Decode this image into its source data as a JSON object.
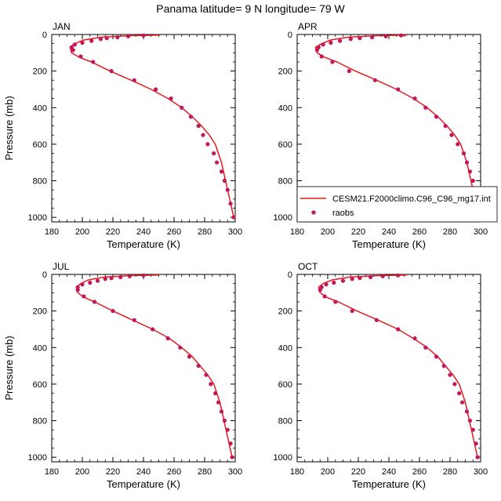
{
  "title": "Panama  latitude= 9 N longitude= 79 W",
  "colors": {
    "model": "#e41a1c",
    "obs": "#c2185b",
    "axis": "#000000"
  },
  "legend": {
    "model_label": "CESM21.F2000climo.C96_C96_mg17.int",
    "obs_label": "raobs"
  },
  "chart_data": [
    {
      "type": "line",
      "title": "JAN",
      "xlabel": "Temperature (K)",
      "ylabel": "Pressure (mb)",
      "xlim": [
        180,
        300
      ],
      "ylim": [
        0,
        1025
      ],
      "y_inverted": true,
      "xticks": [
        180,
        200,
        220,
        240,
        260,
        280,
        300
      ],
      "yticks": [
        0,
        200,
        400,
        600,
        800,
        1000
      ],
      "series": [
        {
          "name": "CESM21.F2000climo.C96_C96_mg17.int",
          "style": "line",
          "x": [
            251,
            230,
            212,
            201,
            195,
            192,
            193,
            198,
            206,
            218,
            232,
            245,
            256,
            265,
            272,
            278,
            283,
            287,
            291,
            295,
            299
          ],
          "y": [
            3,
            7,
            15,
            30,
            50,
            70,
            100,
            125,
            150,
            200,
            250,
            300,
            350,
            400,
            450,
            500,
            550,
            600,
            700,
            850,
            1000
          ]
        },
        {
          "name": "raobs",
          "style": "markers",
          "x": [
            240,
            230,
            223,
            216,
            212,
            206,
            200,
            195,
            193,
            194,
            199,
            207,
            219,
            234,
            248,
            258,
            265,
            271,
            276,
            279,
            282,
            286,
            288,
            291,
            293,
            295,
            297,
            299
          ],
          "y": [
            5,
            10,
            15,
            20,
            25,
            35,
            45,
            55,
            70,
            85,
            120,
            150,
            200,
            250,
            300,
            350,
            400,
            450,
            500,
            550,
            600,
            650,
            700,
            750,
            800,
            850,
            925,
            1000
          ]
        }
      ]
    },
    {
      "type": "line",
      "title": "APR",
      "xlabel": "Temperature (K)",
      "ylabel": "Pressure (mb)",
      "xlim": [
        180,
        300
      ],
      "ylim": [
        0,
        1025
      ],
      "y_inverted": true,
      "xticks": [
        180,
        200,
        220,
        240,
        260,
        280,
        300
      ],
      "yticks": [
        0,
        200,
        400,
        600,
        800,
        1000
      ],
      "series": [
        {
          "name": "CESM21.F2000climo.C96_C96_mg17.int",
          "style": "line",
          "x": [
            252,
            231,
            213,
            202,
            196,
            192,
            193,
            198,
            206,
            218,
            232,
            245,
            256,
            265,
            272,
            278,
            283,
            287,
            291,
            295,
            299
          ],
          "y": [
            3,
            7,
            15,
            30,
            50,
            70,
            100,
            125,
            150,
            200,
            250,
            300,
            350,
            400,
            450,
            500,
            550,
            600,
            700,
            850,
            1000
          ]
        },
        {
          "name": "raobs",
          "style": "markers",
          "x": [
            248,
            238,
            229,
            221,
            215,
            208,
            202,
            197,
            194,
            193,
            196,
            203,
            214,
            231,
            246,
            257,
            264,
            271,
            277,
            281,
            285,
            289,
            291,
            293,
            295,
            297,
            298,
            299
          ],
          "y": [
            5,
            10,
            15,
            20,
            25,
            35,
            45,
            55,
            70,
            85,
            120,
            150,
            200,
            250,
            300,
            350,
            400,
            450,
            500,
            550,
            600,
            650,
            700,
            750,
            800,
            850,
            925,
            1000
          ]
        }
      ]
    },
    {
      "type": "line",
      "title": "JUL",
      "xlabel": "Temperature (K)",
      "ylabel": "Pressure (mb)",
      "xlim": [
        180,
        300
      ],
      "ylim": [
        0,
        1025
      ],
      "y_inverted": true,
      "xticks": [
        180,
        200,
        220,
        240,
        260,
        280,
        300
      ],
      "yticks": [
        0,
        200,
        400,
        600,
        800,
        1000
      ],
      "series": [
        {
          "name": "CESM21.F2000climo.C96_C96_mg17.int",
          "style": "line",
          "x": [
            250,
            230,
            214,
            204,
            199,
            196,
            197,
            201,
            208,
            220,
            233,
            246,
            257,
            265,
            272,
            277,
            282,
            286,
            290,
            294,
            298
          ],
          "y": [
            3,
            7,
            15,
            30,
            50,
            70,
            100,
            125,
            150,
            200,
            250,
            300,
            350,
            400,
            450,
            500,
            550,
            600,
            700,
            850,
            1000
          ]
        },
        {
          "name": "raobs",
          "style": "markers",
          "x": [
            240,
            231,
            225,
            219,
            215,
            210,
            205,
            200,
            197,
            197,
            201,
            208,
            220,
            234,
            246,
            256,
            264,
            270,
            276,
            281,
            284,
            287,
            289,
            291,
            293,
            295,
            297,
            298
          ],
          "y": [
            5,
            10,
            15,
            20,
            25,
            35,
            45,
            55,
            70,
            85,
            120,
            150,
            200,
            250,
            300,
            350,
            400,
            450,
            500,
            550,
            600,
            650,
            700,
            750,
            800,
            850,
            925,
            1000
          ]
        }
      ]
    },
    {
      "type": "line",
      "title": "OCT",
      "xlabel": "Temperature (K)",
      "ylabel": "Pressure (mb)",
      "xlim": [
        180,
        300
      ],
      "ylim": [
        0,
        1025
      ],
      "y_inverted": true,
      "xticks": [
        180,
        200,
        220,
        240,
        260,
        280,
        300
      ],
      "yticks": [
        0,
        200,
        400,
        600,
        800,
        1000
      ],
      "series": [
        {
          "name": "CESM21.F2000climo.C96_C96_mg17.int",
          "style": "line",
          "x": [
            252,
            232,
            214,
            203,
            197,
            194,
            195,
            199,
            207,
            219,
            233,
            246,
            256,
            265,
            272,
            277,
            282,
            286,
            290,
            294,
            298
          ],
          "y": [
            3,
            7,
            15,
            30,
            50,
            70,
            100,
            125,
            150,
            200,
            250,
            300,
            350,
            400,
            450,
            500,
            550,
            600,
            700,
            850,
            1000
          ]
        },
        {
          "name": "raobs",
          "style": "markers",
          "x": [
            246,
            236,
            228,
            221,
            216,
            210,
            204,
            199,
            196,
            195,
            198,
            205,
            216,
            232,
            246,
            257,
            264,
            271,
            276,
            280,
            283,
            286,
            288,
            291,
            293,
            295,
            297,
            298
          ],
          "y": [
            5,
            10,
            15,
            20,
            25,
            35,
            45,
            55,
            70,
            85,
            120,
            150,
            200,
            250,
            300,
            350,
            400,
            450,
            500,
            550,
            600,
            650,
            700,
            750,
            800,
            850,
            925,
            1000
          ]
        }
      ]
    }
  ]
}
